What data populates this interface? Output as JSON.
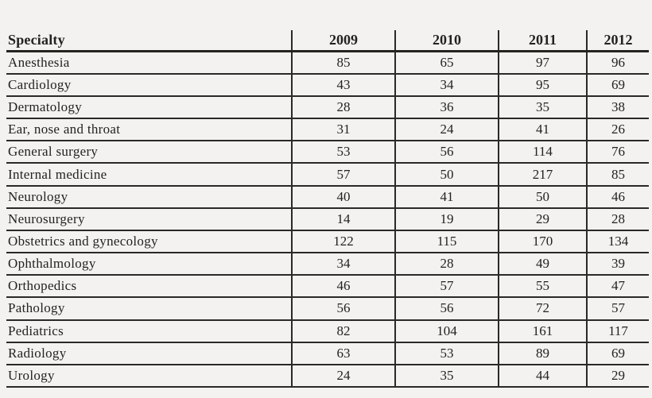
{
  "table": {
    "header": {
      "specialty": "Specialty",
      "years": [
        "2009",
        "2010",
        "2011",
        "2012"
      ]
    },
    "rows": [
      {
        "specialty": "Anesthesia",
        "values": [
          "85",
          "65",
          "97",
          "96"
        ]
      },
      {
        "specialty": "Cardiology",
        "values": [
          "43",
          "34",
          "95",
          "69"
        ]
      },
      {
        "specialty": "Dermatology",
        "values": [
          "28",
          "36",
          "35",
          "38"
        ]
      },
      {
        "specialty": "Ear, nose and throat",
        "values": [
          "31",
          "24",
          "41",
          "26"
        ]
      },
      {
        "specialty": "General surgery",
        "values": [
          "53",
          "56",
          "114",
          "76"
        ]
      },
      {
        "specialty": "Internal medicine",
        "values": [
          "57",
          "50",
          "217",
          "85"
        ]
      },
      {
        "specialty": "Neurology",
        "values": [
          "40",
          "41",
          "50",
          "46"
        ]
      },
      {
        "specialty": "Neurosurgery",
        "values": [
          "14",
          "19",
          "29",
          "28"
        ]
      },
      {
        "specialty": "Obstetrics and gynecology",
        "values": [
          "122",
          "115",
          "170",
          "134"
        ]
      },
      {
        "specialty": "Ophthalmology",
        "values": [
          "34",
          "28",
          "49",
          "39"
        ]
      },
      {
        "specialty": "Orthopedics",
        "values": [
          "46",
          "57",
          "55",
          "47"
        ]
      },
      {
        "specialty": "Pathology",
        "values": [
          "56",
          "56",
          "72",
          "57"
        ]
      },
      {
        "specialty": "Pediatrics",
        "values": [
          "82",
          "104",
          "161",
          "117"
        ]
      },
      {
        "specialty": "Radiology",
        "values": [
          "63",
          "53",
          "89",
          "69"
        ]
      },
      {
        "specialty": "Urology",
        "values": [
          "24",
          "35",
          "44",
          "29"
        ]
      }
    ]
  },
  "colors": {
    "background": "#f3f2f0",
    "rule": "#2b2927",
    "text": "#232220"
  },
  "chart_data": {
    "type": "table",
    "title": "",
    "columns": [
      "Specialty",
      "2009",
      "2010",
      "2011",
      "2012"
    ],
    "categories": [
      "Anesthesia",
      "Cardiology",
      "Dermatology",
      "Ear, nose and throat",
      "General surgery",
      "Internal medicine",
      "Neurology",
      "Neurosurgery",
      "Obstetrics and gynecology",
      "Ophthalmology",
      "Orthopedics",
      "Pathology",
      "Pediatrics",
      "Radiology",
      "Urology"
    ],
    "series": [
      {
        "name": "2009",
        "values": [
          85,
          43,
          28,
          31,
          53,
          57,
          40,
          14,
          122,
          34,
          46,
          56,
          82,
          63,
          24
        ]
      },
      {
        "name": "2010",
        "values": [
          65,
          34,
          36,
          24,
          56,
          50,
          41,
          19,
          115,
          28,
          57,
          56,
          104,
          53,
          35
        ]
      },
      {
        "name": "2011",
        "values": [
          97,
          95,
          35,
          41,
          114,
          217,
          50,
          29,
          170,
          49,
          55,
          72,
          161,
          89,
          44
        ]
      },
      {
        "name": "2012",
        "values": [
          96,
          69,
          38,
          26,
          76,
          85,
          46,
          28,
          134,
          39,
          47,
          57,
          117,
          69,
          29
        ]
      }
    ],
    "layout": {
      "grid": "ruled rows, vertical rules between year columns",
      "legend": "none"
    }
  }
}
